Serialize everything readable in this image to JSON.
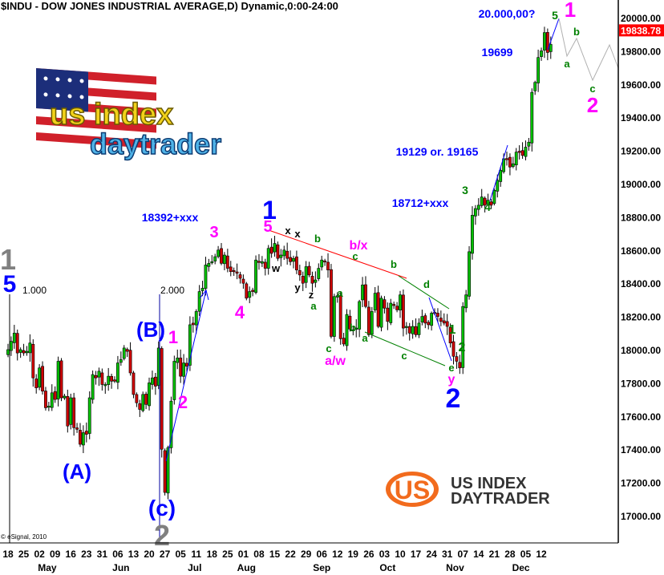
{
  "title": "$INDU - DOW JONES INDUSTRIAL AVERAGE,D) Dynamic,0:00-24:00",
  "copyright": "© eSignal, 2010",
  "last_price_label": "19838.78",
  "colors": {
    "up": "#00c000",
    "down": "#d00000",
    "last_price": "#ff0000",
    "wave_blue": "#0000ff",
    "wave_magenta": "#ff00ff",
    "wave_green": "#008000",
    "wave_gray": "#808080",
    "trend_red": "#ff0000",
    "trend_green": "#008000",
    "projection": "#b0b0b0"
  },
  "logos": {
    "top_left": {
      "line1": "us index",
      "line2": "daytrader"
    },
    "bottom_right": {
      "badge": "US",
      "line1": "US INDEX",
      "line2": "DAYTRADER"
    }
  },
  "chart_data": {
    "type": "candlestick",
    "title": "$INDU - DOW JONES INDUSTRIAL AVERAGE,D) Dynamic,0:00-24:00",
    "ylim": [
      16850,
      20150
    ],
    "y_ticks": [
      "20000.00",
      "19800.00",
      "19600.00",
      "19400.00",
      "19200.00",
      "19000.00",
      "18800.00",
      "18600.00",
      "18400.00",
      "18200.00",
      "18000.00",
      "17800.00",
      "17600.00",
      "17400.00",
      "17200.00",
      "17000.00"
    ],
    "y_tick_values": [
      20000,
      19800,
      19600,
      19400,
      19200,
      19000,
      18800,
      18600,
      18400,
      18200,
      18000,
      17800,
      17600,
      17400,
      17200,
      17000
    ],
    "x_ticks": [
      "18",
      "25",
      "02",
      "09",
      "16",
      "23",
      "31",
      "06",
      "13",
      "20",
      "27",
      "05",
      "11",
      "18",
      "25",
      "01",
      "08",
      "15",
      "22",
      "29",
      "06",
      "12",
      "19",
      "26",
      "03",
      "10",
      "17",
      "24",
      "31",
      "07",
      "14",
      "21",
      "28",
      "05",
      "12"
    ],
    "months": [
      {
        "label": "May",
        "week": 2.5
      },
      {
        "label": "Jun",
        "week": 7.2
      },
      {
        "label": "Jul",
        "week": 11.9
      },
      {
        "label": "Aug",
        "week": 15.2
      },
      {
        "label": "Sep",
        "week": 20.0
      },
      {
        "label": "Oct",
        "week": 24.2
      },
      {
        "label": "Nov",
        "week": 28.5
      },
      {
        "label": "Dec",
        "week": 32.7
      }
    ],
    "closes": [
      18000,
      18050,
      18100,
      17980,
      18000,
      17980,
      17990,
      18040,
      17830,
      17770,
      17890,
      17750,
      17650,
      17660,
      17740,
      17700,
      17930,
      17710,
      17720,
      17540,
      17710,
      17530,
      17520,
      17430,
      17500,
      17490,
      17710,
      17850,
      17830,
      17870,
      17790,
      17790,
      17840,
      17810,
      17810,
      17920,
      17940,
      18010,
      17990,
      17860,
      17730,
      17680,
      17640,
      17730,
      17670,
      17800,
      17830,
      17780,
      18010,
      17400,
      17140,
      17410,
      17690,
      17930,
      17950,
      17840,
      17920,
      17900,
      18150,
      18150,
      18230,
      18350,
      18370,
      18510,
      18520,
      18530,
      18560,
      18600,
      18520,
      18570,
      18490,
      18470,
      18470,
      18460,
      18430,
      18400,
      18310,
      18350,
      18350,
      18540,
      18530,
      18530,
      18490,
      18610,
      18580,
      18640,
      18550,
      18570,
      18600,
      18550,
      18530,
      18550,
      18480,
      18450,
      18400,
      18500,
      18450,
      18400,
      18420,
      18490,
      18540,
      18530,
      18480,
      18080,
      18320,
      18325,
      18066,
      18034,
      18212,
      18124,
      18120,
      18130,
      18290,
      18390,
      18260,
      18090,
      18230,
      18340,
      18140,
      18310,
      18250,
      18170,
      18280,
      18270,
      18240,
      18330,
      18130,
      18140,
      18100,
      18140,
      18090,
      18160,
      18200,
      18160,
      18150,
      18220,
      18220,
      18200,
      18170,
      18160,
      18140,
      18040,
      17960,
      17930,
      17890,
      18260,
      18330,
      18590,
      18810,
      18850,
      18870,
      18920,
      18870,
      18900,
      18870,
      18960,
      19020,
      19080,
      19150,
      19150,
      19100,
      19120,
      19190,
      19190,
      19170,
      19220,
      19250,
      19550,
      19610,
      19760,
      19800,
      19910,
      19790,
      19838.78
    ],
    "fib_markers": [
      "1.000",
      "2.000"
    ],
    "annotations": [
      {
        "text": "1",
        "color": "gray"
      },
      {
        "text": "5",
        "color": "blue"
      },
      {
        "text": "(A)",
        "color": "blue"
      },
      {
        "text": "(B)",
        "color": "blue"
      },
      {
        "text": "1",
        "color": "magenta"
      },
      {
        "text": "2",
        "color": "magenta"
      },
      {
        "text": "(c)",
        "color": "blue"
      },
      {
        "text": "2",
        "color": "gray"
      },
      {
        "text": "3",
        "color": "magenta"
      },
      {
        "text": "4",
        "color": "magenta"
      },
      {
        "text": "18392+xxx",
        "color": "blue"
      },
      {
        "text": "1",
        "color": "blue"
      },
      {
        "text": "5",
        "color": "magenta"
      },
      {
        "text": "x",
        "color": "black"
      },
      {
        "text": "x",
        "color": "black"
      },
      {
        "text": "w",
        "color": "black"
      },
      {
        "text": "y",
        "color": "black"
      },
      {
        "text": "z",
        "color": "black"
      },
      {
        "text": "a",
        "color": "green"
      },
      {
        "text": "b",
        "color": "green"
      },
      {
        "text": "b/x",
        "color": "magenta"
      },
      {
        "text": "c",
        "color": "green"
      },
      {
        "text": "a",
        "color": "green"
      },
      {
        "text": "b",
        "color": "green"
      },
      {
        "text": "c",
        "color": "green"
      },
      {
        "text": "a/w",
        "color": "magenta"
      },
      {
        "text": "a",
        "color": "green"
      },
      {
        "text": "b",
        "color": "green"
      },
      {
        "text": "c",
        "color": "green"
      },
      {
        "text": "d",
        "color": "green"
      },
      {
        "text": "1",
        "color": "green"
      },
      {
        "text": "2",
        "color": "green"
      },
      {
        "text": "e",
        "color": "green"
      },
      {
        "text": "y",
        "color": "magenta"
      },
      {
        "text": "2",
        "color": "blue"
      },
      {
        "text": "18712+xxx",
        "color": "blue"
      },
      {
        "text": "19129 or. 19165",
        "color": "blue"
      },
      {
        "text": "3",
        "color": "green"
      },
      {
        "text": "4",
        "color": "green"
      },
      {
        "text": "19699",
        "color": "blue"
      },
      {
        "text": "20.000,00?",
        "color": "blue"
      },
      {
        "text": "5",
        "color": "green"
      },
      {
        "text": "1",
        "color": "magenta"
      },
      {
        "text": "a",
        "color": "green"
      },
      {
        "text": "b",
        "color": "green"
      },
      {
        "text": "c",
        "color": "green"
      },
      {
        "text": "2",
        "color": "magenta"
      }
    ]
  }
}
